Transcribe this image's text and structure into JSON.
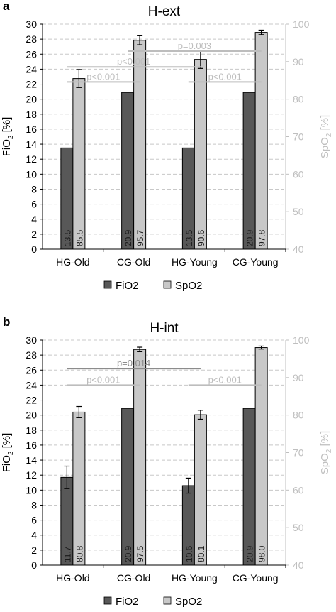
{
  "figure": {
    "panels": [
      {
        "letter": "a"
      },
      {
        "letter": "b"
      }
    ]
  },
  "colors": {
    "fio2": "#585858",
    "spo2": "#c8c8c8",
    "bar_outline": "#000000",
    "grid": "#c8c8c8",
    "right_axis_text": "#bfbfbf",
    "sig_dark": "#8c8c8c",
    "sig_light": "#bdbdbd"
  },
  "chart_data": [
    {
      "type": "bar",
      "title": "H-ext",
      "categories": [
        "HG-Old",
        "CG-Old",
        "HG-Young",
        "CG-Young"
      ],
      "ylabel": "FiO2 [%]",
      "ylabel_main": "FiO",
      "ylabel_sub": "2",
      "ylabel_rest": " [%]",
      "y2label_main": "SpO",
      "y2label_sub": "2",
      "y2label_rest": " [%]",
      "ylim": [
        0,
        30
      ],
      "y2lim": [
        40,
        100
      ],
      "yticks": [
        "0",
        "2",
        "4",
        "6",
        "8",
        "10",
        "12",
        "14",
        "16",
        "18",
        "20",
        "22",
        "24",
        "26",
        "28",
        "30"
      ],
      "y2ticks": [
        "40",
        "50",
        "60",
        "70",
        "80",
        "90",
        "100"
      ],
      "legend": [
        "FiO2",
        "SpO2"
      ],
      "legend_position": "bottom",
      "grid": true,
      "series": [
        {
          "name": "FiO2",
          "axis": "left",
          "values": [
            13.5,
            20.9,
            13.5,
            20.9
          ],
          "errors": [
            0,
            0,
            0,
            0
          ],
          "labels": [
            "13.5",
            "20.9",
            "13.5",
            "20.9"
          ]
        },
        {
          "name": "SpO2",
          "axis": "right",
          "values": [
            85.5,
            95.7,
            90.6,
            97.8
          ],
          "errors": [
            2.4,
            1.2,
            2.4,
            0.6
          ],
          "labels": [
            "85.5",
            "95.7",
            "90.6",
            "97.8"
          ]
        }
      ],
      "significance": [
        {
          "text": "p=0.003",
          "from": "CG-Old",
          "to": "CG-Young",
          "level": 26.4,
          "tone": "light"
        },
        {
          "text": "p<0.001",
          "from": "HG-Old",
          "to": "HG-Young",
          "level": 24.3,
          "tone": "light"
        },
        {
          "text": "p<0.001",
          "from": "HG-Old",
          "to": "CG-Old",
          "level": 22.3,
          "tone": "light"
        },
        {
          "text": "p<0.001",
          "from": "HG-Young",
          "to": "CG-Young",
          "level": 22.3,
          "tone": "light"
        }
      ]
    },
    {
      "type": "bar",
      "title": "H-int",
      "categories": [
        "HG-Old",
        "CG-Old",
        "HG-Young",
        "CG-Young"
      ],
      "ylabel": "FiO2 [%]",
      "ylabel_main": "FiO",
      "ylabel_sub": "2",
      "ylabel_rest": " [%]",
      "y2label_main": "SpO",
      "y2label_sub": "2",
      "y2label_rest": " [%]",
      "ylim": [
        0,
        30
      ],
      "y2lim": [
        40,
        100
      ],
      "yticks": [
        "0",
        "2",
        "4",
        "6",
        "8",
        "10",
        "12",
        "14",
        "16",
        "18",
        "20",
        "22",
        "24",
        "26",
        "28",
        "30"
      ],
      "y2ticks": [
        "40",
        "50",
        "60",
        "70",
        "80",
        "90",
        "100"
      ],
      "legend": [
        "FiO2",
        "SpO2"
      ],
      "legend_position": "bottom",
      "grid": true,
      "series": [
        {
          "name": "FiO2",
          "axis": "left",
          "values": [
            11.7,
            20.9,
            10.6,
            20.9
          ],
          "errors": [
            1.5,
            0,
            1.0,
            0
          ],
          "labels": [
            "11.7",
            "20.9",
            "10.6",
            "20.9"
          ]
        },
        {
          "name": "SpO2",
          "axis": "right",
          "values": [
            80.8,
            97.5,
            80.1,
            98.0
          ],
          "errors": [
            1.5,
            0.6,
            1.2,
            0.4
          ],
          "labels": [
            "80.8",
            "97.5",
            "80.1",
            "98.0"
          ]
        }
      ],
      "significance": [
        {
          "text": "p=0.014",
          "from": "HG-Old",
          "to": "HG-Young",
          "level": 26.2,
          "tone": "dark"
        },
        {
          "text": "p<0.001",
          "from": "HG-Old",
          "to": "CG-Old",
          "level": 24.0,
          "tone": "light"
        },
        {
          "text": "p<0.001",
          "from": "HG-Young",
          "to": "CG-Young",
          "level": 24.0,
          "tone": "light"
        }
      ]
    }
  ]
}
